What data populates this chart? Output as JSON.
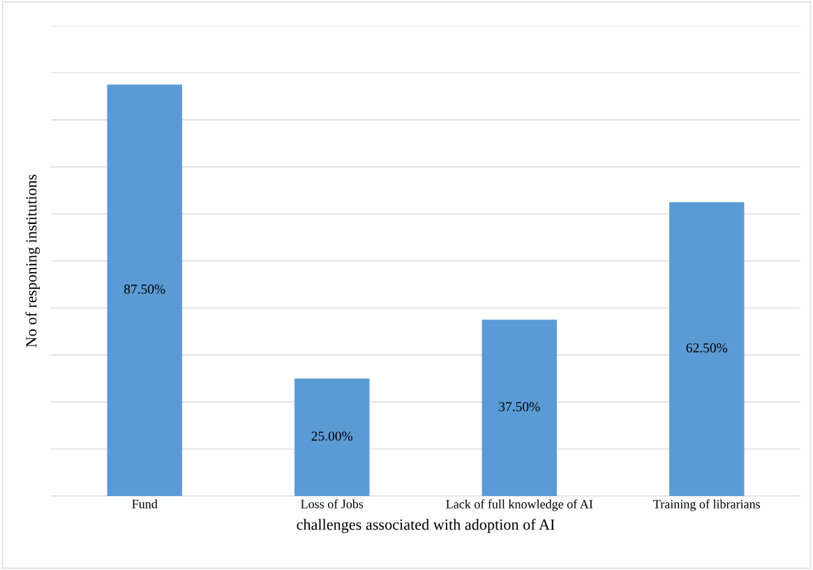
{
  "chart_data": {
    "type": "bar",
    "xlabel": "challenges associated with adoption of AI",
    "ylabel": "No of responing institutions",
    "categories": [
      "Fund",
      "Loss of Jobs",
      "Lack of full knowledge of AI",
      "Training of librarians"
    ],
    "values": [
      87.5,
      25,
      37.5,
      62.5
    ],
    "color": "#5b9bd5",
    "value_labels": [
      "87.50%",
      "25.00%",
      "37.50%",
      "62.50%"
    ],
    "ylim": [
      0,
      100
    ],
    "yticks": [
      {
        "value": 0,
        "label": null
      },
      {
        "value": 10,
        "label": null
      },
      {
        "value": 20,
        "label": null
      },
      {
        "value": 30,
        "label": null
      },
      {
        "value": 40,
        "label": null
      },
      {
        "value": 50,
        "label": null
      },
      {
        "value": 60,
        "label": null
      },
      {
        "value": 70,
        "label": null
      },
      {
        "value": 80,
        "label": null
      },
      {
        "value": 90,
        "label": null
      },
      {
        "value": 100,
        "label": null
      }
    ],
    "tick_labels": "x",
    "grid": "y"
  }
}
